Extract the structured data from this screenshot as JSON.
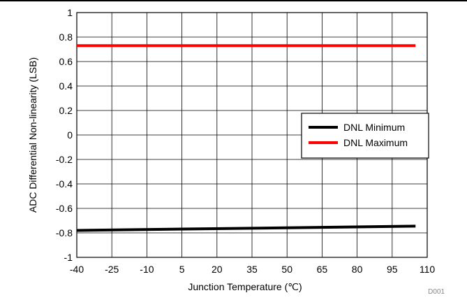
{
  "chart_data": {
    "type": "line",
    "xlabel": "Junction Temperature (℃)",
    "ylabel": "ADC Differential Non-linearity (LSB)",
    "xlim": [
      -40,
      110
    ],
    "ylim": [
      -1,
      1
    ],
    "xticks": [
      "-40",
      "-25",
      "-10",
      "5",
      "20",
      "35",
      "50",
      "65",
      "80",
      "95",
      "110"
    ],
    "yticks": [
      "1",
      "0.8",
      "0.6",
      "0.4",
      "0.2",
      "0",
      "-0.2",
      "-0.4",
      "-0.6",
      "-0.8",
      "-1"
    ],
    "grid": true,
    "legend": "right",
    "series": [
      {
        "name": "DNL Minimum",
        "color": "#000000",
        "x": [
          -40,
          105
        ],
        "y": [
          -0.78,
          -0.745
        ]
      },
      {
        "name": "DNL Maximum",
        "color": "#ff0000",
        "x": [
          -40,
          105
        ],
        "y": [
          0.73,
          0.73
        ]
      }
    ],
    "annotation": "D001"
  }
}
